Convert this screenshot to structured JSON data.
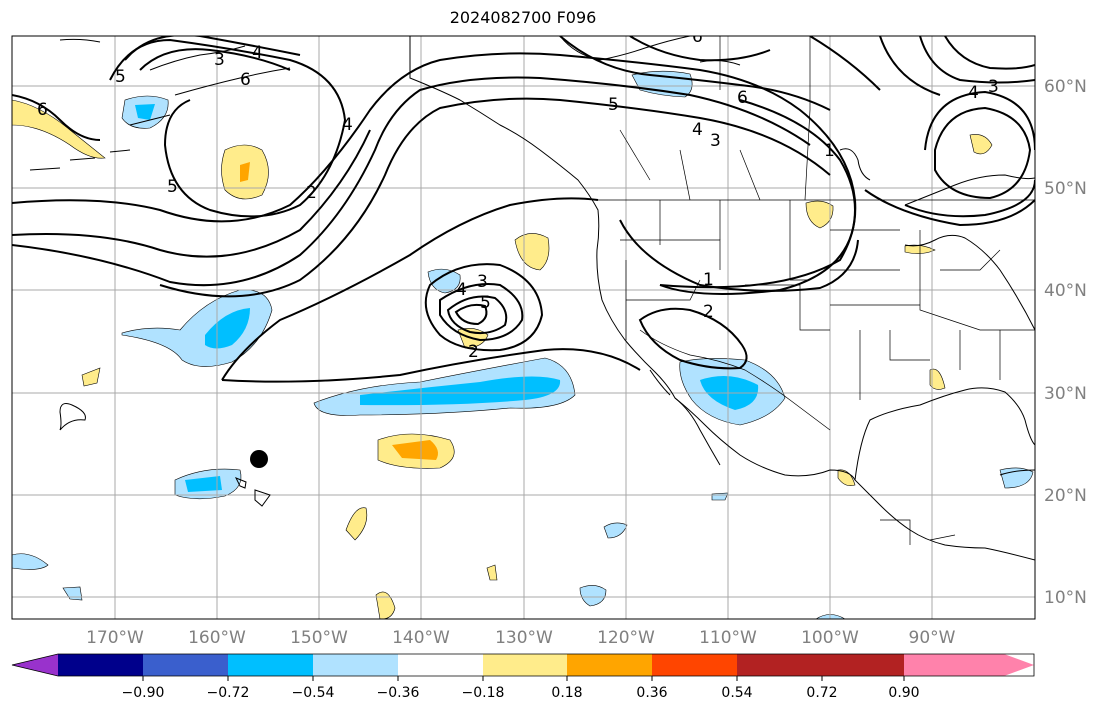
{
  "title": "2024082700 F096",
  "map": {
    "lon_ticks": [
      "170°W",
      "160°W",
      "150°W",
      "140°W",
      "130°W",
      "120°W",
      "110°W",
      "100°W",
      "90°W"
    ],
    "lat_ticks": [
      "60°N",
      "50°N",
      "40°N",
      "30°N",
      "20°N",
      "10°N"
    ],
    "contour_labels": [
      "6",
      "3",
      "4",
      "6",
      "5",
      "4",
      "5",
      "2",
      "6",
      "5",
      "4",
      "3",
      "6",
      "4",
      "3",
      "3",
      "4",
      "5",
      "2",
      "1",
      "2",
      "1"
    ]
  },
  "colorbar": {
    "colors": [
      "#9932cc",
      "#00008b",
      "#3a5fcd",
      "#00bfff",
      "#b0e2ff",
      "#ffffff",
      "#ffec8b",
      "#ffa500",
      "#ff4500",
      "#b22222",
      "#ff82ab"
    ],
    "labels": [
      "−0.90",
      "−0.72",
      "−0.54",
      "−0.36",
      "−0.18",
      "0.18",
      "0.36",
      "0.54",
      "0.72",
      "0.90"
    ]
  }
}
